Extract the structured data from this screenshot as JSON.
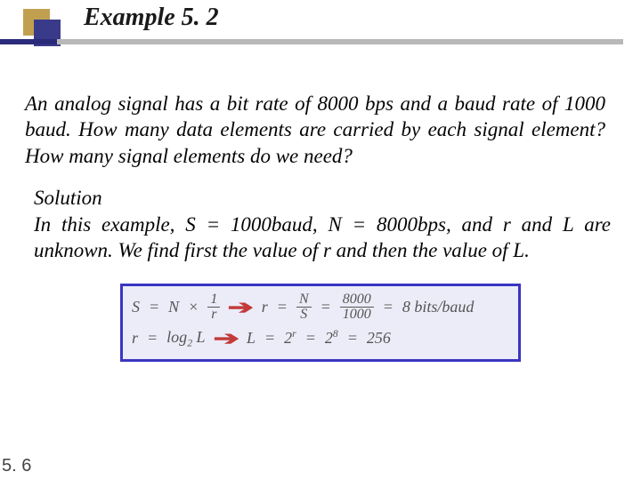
{
  "header": {
    "title": "Example 5. 2",
    "accent_square_color": "#c0a050",
    "logo_square_color": "#3a3a8a",
    "underline_gray": "#b8b8b8",
    "underline_blue": "#2a2a7a"
  },
  "problem": {
    "text": "An analog signal has a bit rate of 8000 bps and a baud rate of 1000 baud. How many data elements are carried by each signal element? How many signal elements do we need?"
  },
  "solution": {
    "label": "Solution",
    "text": "In this example, S = 1000baud, N = 8000bps, and r and L are unknown. We find first the value of r and then the value of L."
  },
  "equations": {
    "box_border_color": "#3a35c2",
    "box_background": "#ececf8",
    "text_color": "#555555",
    "arrow_color": "#c23a3a",
    "row1": {
      "lhs_var": "S",
      "eq1": "=",
      "rhs1_a": "N",
      "times": "×",
      "frac1_num": "1",
      "frac1_den": "r",
      "mid_var": "r",
      "eq2": "=",
      "frac2_num": "N",
      "frac2_den": "S",
      "eq3": "=",
      "frac3_num": "8000",
      "frac3_den": "1000",
      "eq4": "=",
      "result": "8 bits/baud"
    },
    "row2": {
      "lhs_var": "r",
      "eq1": "=",
      "log": "log",
      "log_sub": "2",
      "log_arg": " L",
      "mid_var": "L",
      "eq2": "=",
      "base1": "2",
      "exp1": "r",
      "eq3": "=",
      "base2": "2",
      "exp2": "8",
      "eq4": "=",
      "result": "256"
    }
  },
  "page_number": "5. 6"
}
